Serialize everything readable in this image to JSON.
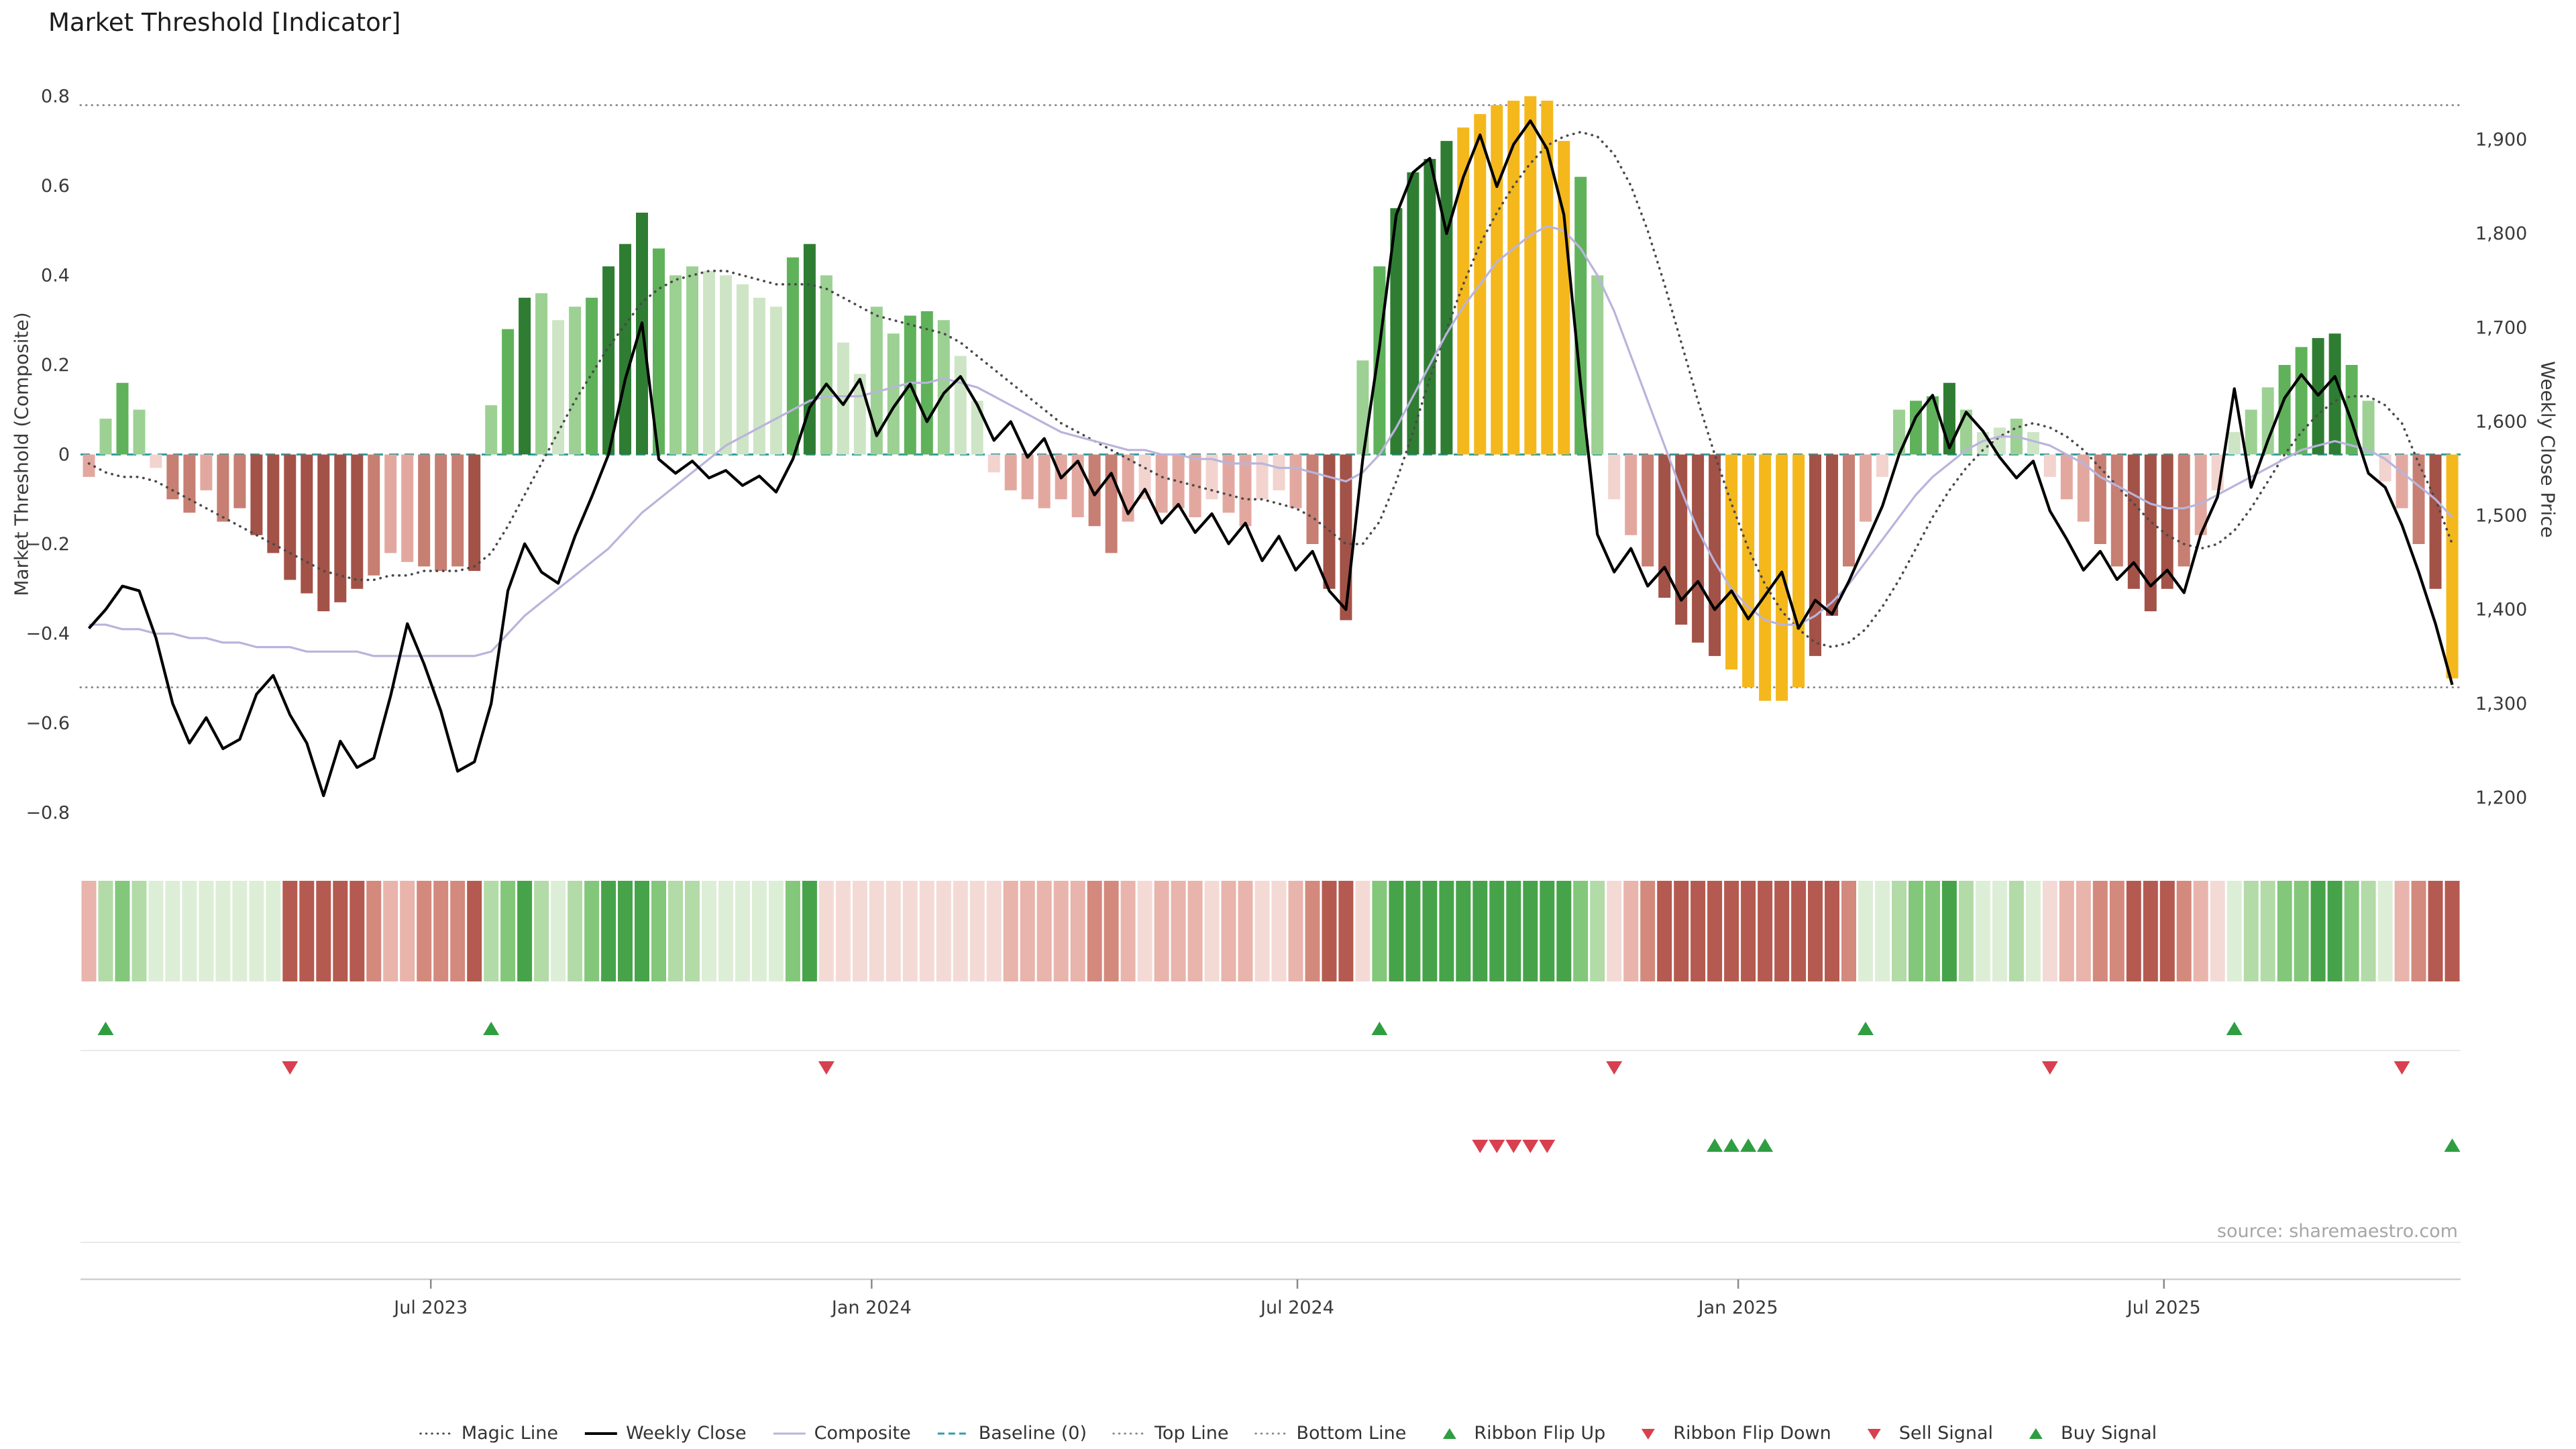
{
  "colors": {
    "bar": {
      "g1": "#cde5c5",
      "g2": "#9cd193",
      "g3": "#5fb25a",
      "g4": "#2f7d33",
      "r1": "#f2d3ce",
      "r2": "#e2a89f",
      "r3": "#c67f72",
      "r4": "#a35247",
      "gold": "#f4b81d"
    },
    "ribbon_green": [
      "#ddeed6",
      "#b2dba8",
      "#83c77a",
      "#47a34a"
    ],
    "ribbon_red": [
      "#f4dad5",
      "#e8b4ab",
      "#d4897d",
      "#b55a50"
    ],
    "magic": "#4a4a4a",
    "composite": "#b9b4dc",
    "price": "#000000",
    "baseline": "#2f9ea6",
    "guide": "#8a8a8a",
    "flip_up": "#2f9e41",
    "flip_down": "#d8404f",
    "sell": "#d8404f",
    "buy": "#2f9e41"
  },
  "chart_data": {
    "type": "combo",
    "title": "Market Threshold [Indicator]",
    "source": "source: sharemaestro.com",
    "ylabel_left": "Market Threshold (Composite)",
    "ylabel_right": "Weekly Close Price",
    "ylim_left": [
      -0.85,
      0.85
    ],
    "ylim_right": [
      1160,
      1970
    ],
    "yticks_left": [
      -0.8,
      -0.6,
      -0.4,
      -0.2,
      0,
      0.2,
      0.4,
      0.6,
      0.8
    ],
    "yticks_right": [
      1200,
      1300,
      1400,
      1500,
      1600,
      1700,
      1800,
      1900
    ],
    "xticks": [
      {
        "index": 20.4,
        "label": "Jul 2023"
      },
      {
        "index": 46.7,
        "label": "Jan 2024"
      },
      {
        "index": 72.1,
        "label": "Jul 2024"
      },
      {
        "index": 98.4,
        "label": "Jan 2025"
      },
      {
        "index": 123.8,
        "label": "Jul 2025"
      }
    ],
    "top_line": 0.78,
    "bottom_line": -0.52,
    "baseline": 0,
    "threshold_bars": {
      "values": [
        -0.05,
        0.08,
        0.16,
        0.1,
        -0.03,
        -0.1,
        -0.13,
        -0.08,
        -0.15,
        -0.12,
        -0.18,
        -0.22,
        -0.28,
        -0.31,
        -0.35,
        -0.33,
        -0.3,
        -0.27,
        -0.22,
        -0.24,
        -0.25,
        -0.26,
        -0.25,
        -0.26,
        0.11,
        0.28,
        0.35,
        0.36,
        0.3,
        0.33,
        0.35,
        0.42,
        0.47,
        0.54,
        0.46,
        0.4,
        0.42,
        0.41,
        0.4,
        0.38,
        0.35,
        0.33,
        0.44,
        0.47,
        0.4,
        0.25,
        0.18,
        0.33,
        0.27,
        0.31,
        0.32,
        0.3,
        0.22,
        0.12,
        -0.04,
        -0.08,
        -0.1,
        -0.12,
        -0.1,
        -0.14,
        -0.16,
        -0.22,
        -0.15,
        -0.1,
        -0.13,
        -0.12,
        -0.14,
        -0.1,
        -0.13,
        -0.16,
        -0.1,
        -0.08,
        -0.12,
        -0.2,
        -0.3,
        -0.37,
        0.21,
        0.42,
        0.55,
        0.63,
        0.66,
        0.7,
        0.73,
        0.76,
        0.78,
        0.79,
        0.8,
        0.79,
        0.7,
        0.62,
        0.4,
        -0.1,
        -0.18,
        -0.25,
        -0.32,
        -0.38,
        -0.42,
        -0.45,
        -0.48,
        -0.52,
        -0.55,
        -0.55,
        -0.52,
        -0.45,
        -0.36,
        -0.25,
        -0.15,
        -0.05,
        0.1,
        0.12,
        0.13,
        0.16,
        0.1,
        0.05,
        0.06,
        0.08,
        0.05,
        -0.05,
        -0.1,
        -0.15,
        -0.2,
        -0.25,
        -0.3,
        -0.35,
        -0.3,
        -0.25,
        -0.18,
        -0.08,
        0.05,
        0.1,
        0.15,
        0.2,
        0.24,
        0.26,
        0.27,
        0.2,
        0.12,
        -0.06,
        -0.12,
        -0.2,
        -0.3,
        -0.5
      ],
      "shades": [
        "r2",
        "g2",
        "g3",
        "g2",
        "r1",
        "r3",
        "r3",
        "r2",
        "r3",
        "r3",
        "r4",
        "r4",
        "r4",
        "r4",
        "r4",
        "r4",
        "r4",
        "r3",
        "r2",
        "r2",
        "r3",
        "r3",
        "r3",
        "r4",
        "g2",
        "g3",
        "g4",
        "g2",
        "g1",
        "g2",
        "g3",
        "g4",
        "g4",
        "g4",
        "g3",
        "g2",
        "g2",
        "g1",
        "g1",
        "g1",
        "g1",
        "g1",
        "g3",
        "g4",
        "g2",
        "g1",
        "g1",
        "g2",
        "g2",
        "g3",
        "g3",
        "g2",
        "g1",
        "g1",
        "r1",
        "r2",
        "r2",
        "r2",
        "r2",
        "r2",
        "r3",
        "r3",
        "r2",
        "r1",
        "r2",
        "r2",
        "r2",
        "r1",
        "r2",
        "r2",
        "r1",
        "r1",
        "r2",
        "r3",
        "r4",
        "r4",
        "g2",
        "g3",
        "g4",
        "g4",
        "g4",
        "g4",
        "gold",
        "gold",
        "gold",
        "gold",
        "gold",
        "gold",
        "gold",
        "g3",
        "g2",
        "r1",
        "r2",
        "r3",
        "r4",
        "r4",
        "r4",
        "r4",
        "gold",
        "gold",
        "gold",
        "gold",
        "gold",
        "r4",
        "r4",
        "r3",
        "r2",
        "r1",
        "g2",
        "g3",
        "g3",
        "g4",
        "g2",
        "g1",
        "g1",
        "g2",
        "g1",
        "r1",
        "r2",
        "r2",
        "r3",
        "r3",
        "r4",
        "r4",
        "r4",
        "r3",
        "r2",
        "r1",
        "g1",
        "g2",
        "g2",
        "g3",
        "g3",
        "g4",
        "g4",
        "g3",
        "g2",
        "r1",
        "r2",
        "r3",
        "r4",
        "gold"
      ]
    },
    "weekly_close": [
      1380,
      1400,
      1425,
      1420,
      1370,
      1300,
      1258,
      1285,
      1252,
      1262,
      1310,
      1330,
      1288,
      1258,
      1202,
      1260,
      1232,
      1242,
      1308,
      1385,
      1342,
      1292,
      1228,
      1238,
      1300,
      1420,
      1470,
      1440,
      1428,
      1478,
      1520,
      1565,
      1645,
      1705,
      1560,
      1545,
      1558,
      1540,
      1548,
      1532,
      1542,
      1525,
      1560,
      1615,
      1640,
      1618,
      1645,
      1585,
      1615,
      1640,
      1600,
      1630,
      1648,
      1618,
      1580,
      1600,
      1562,
      1582,
      1540,
      1558,
      1522,
      1545,
      1502,
      1528,
      1492,
      1512,
      1482,
      1502,
      1470,
      1492,
      1452,
      1478,
      1442,
      1462,
      1420,
      1400,
      1560,
      1680,
      1820,
      1865,
      1880,
      1800,
      1860,
      1905,
      1850,
      1895,
      1920,
      1890,
      1820,
      1640,
      1480,
      1440,
      1465,
      1425,
      1445,
      1410,
      1430,
      1400,
      1420,
      1390,
      1415,
      1440,
      1380,
      1410,
      1395,
      1430,
      1470,
      1510,
      1565,
      1605,
      1628,
      1572,
      1610,
      1590,
      1562,
      1540,
      1558,
      1505,
      1475,
      1442,
      1462,
      1432,
      1450,
      1425,
      1442,
      1418,
      1480,
      1520,
      1635,
      1530,
      1580,
      1625,
      1650,
      1628,
      1648,
      1600,
      1545,
      1530,
      1490,
      1440,
      1385,
      1320
    ],
    "composite": [
      -0.38,
      -0.38,
      -0.39,
      -0.39,
      -0.4,
      -0.4,
      -0.41,
      -0.41,
      -0.42,
      -0.42,
      -0.43,
      -0.43,
      -0.43,
      -0.44,
      -0.44,
      -0.44,
      -0.44,
      -0.45,
      -0.45,
      -0.45,
      -0.45,
      -0.45,
      -0.45,
      -0.45,
      -0.44,
      -0.4,
      -0.36,
      -0.33,
      -0.3,
      -0.27,
      -0.24,
      -0.21,
      -0.17,
      -0.13,
      -0.1,
      -0.07,
      -0.04,
      -0.01,
      0.02,
      0.04,
      0.06,
      0.08,
      0.1,
      0.12,
      0.13,
      0.13,
      0.13,
      0.14,
      0.15,
      0.16,
      0.16,
      0.17,
      0.16,
      0.15,
      0.13,
      0.11,
      0.09,
      0.07,
      0.05,
      0.04,
      0.03,
      0.02,
      0.01,
      0.01,
      0.0,
      0.0,
      -0.01,
      -0.01,
      -0.02,
      -0.02,
      -0.02,
      -0.03,
      -0.03,
      -0.04,
      -0.05,
      -0.06,
      -0.04,
      0.0,
      0.06,
      0.13,
      0.2,
      0.27,
      0.33,
      0.38,
      0.43,
      0.46,
      0.49,
      0.51,
      0.5,
      0.46,
      0.4,
      0.32,
      0.22,
      0.12,
      0.02,
      -0.08,
      -0.17,
      -0.24,
      -0.3,
      -0.34,
      -0.37,
      -0.38,
      -0.38,
      -0.36,
      -0.33,
      -0.29,
      -0.24,
      -0.19,
      -0.14,
      -0.09,
      -0.05,
      -0.02,
      0.01,
      0.03,
      0.04,
      0.04,
      0.03,
      0.02,
      0.0,
      -0.02,
      -0.05,
      -0.07,
      -0.09,
      -0.11,
      -0.12,
      -0.12,
      -0.11,
      -0.09,
      -0.07,
      -0.05,
      -0.03,
      -0.01,
      0.01,
      0.02,
      0.03,
      0.02,
      0.01,
      -0.01,
      -0.04,
      -0.07,
      -0.1,
      -0.14
    ],
    "magic_line": [
      -0.02,
      -0.04,
      -0.05,
      -0.05,
      -0.06,
      -0.08,
      -0.1,
      -0.12,
      -0.14,
      -0.16,
      -0.18,
      -0.2,
      -0.22,
      -0.24,
      -0.26,
      -0.27,
      -0.28,
      -0.28,
      -0.27,
      -0.27,
      -0.26,
      -0.26,
      -0.26,
      -0.25,
      -0.22,
      -0.16,
      -0.09,
      -0.02,
      0.05,
      0.12,
      0.18,
      0.24,
      0.29,
      0.34,
      0.37,
      0.39,
      0.4,
      0.41,
      0.41,
      0.4,
      0.39,
      0.38,
      0.38,
      0.38,
      0.37,
      0.35,
      0.33,
      0.31,
      0.3,
      0.29,
      0.28,
      0.27,
      0.25,
      0.22,
      0.19,
      0.16,
      0.13,
      0.1,
      0.07,
      0.05,
      0.03,
      0.01,
      -0.01,
      -0.03,
      -0.05,
      -0.06,
      -0.07,
      -0.08,
      -0.09,
      -0.1,
      -0.1,
      -0.11,
      -0.12,
      -0.14,
      -0.17,
      -0.2,
      -0.2,
      -0.15,
      -0.06,
      0.05,
      0.17,
      0.28,
      0.38,
      0.47,
      0.54,
      0.6,
      0.65,
      0.69,
      0.71,
      0.72,
      0.71,
      0.67,
      0.6,
      0.5,
      0.38,
      0.25,
      0.12,
      0.0,
      -0.11,
      -0.21,
      -0.29,
      -0.35,
      -0.39,
      -0.42,
      -0.43,
      -0.42,
      -0.39,
      -0.34,
      -0.28,
      -0.21,
      -0.14,
      -0.08,
      -0.03,
      0.01,
      0.04,
      0.06,
      0.07,
      0.06,
      0.04,
      0.01,
      -0.03,
      -0.07,
      -0.11,
      -0.15,
      -0.18,
      -0.2,
      -0.21,
      -0.2,
      -0.17,
      -0.12,
      -0.06,
      0.0,
      0.05,
      0.09,
      0.12,
      0.13,
      0.13,
      0.11,
      0.07,
      -0.02,
      -0.1,
      -0.2
    ],
    "ribbon": {
      "segments": [
        {
          "from": 0,
          "to": 0,
          "sign": "r"
        },
        {
          "from": 1,
          "to": 11,
          "sign": "g"
        },
        {
          "from": 12,
          "to": 23,
          "sign": "r"
        },
        {
          "from": 24,
          "to": 43,
          "sign": "g"
        },
        {
          "from": 44,
          "to": 76,
          "sign": "r"
        },
        {
          "from": 77,
          "to": 90,
          "sign": "g"
        },
        {
          "from": 91,
          "to": 105,
          "sign": "r"
        },
        {
          "from": 106,
          "to": 116,
          "sign": "g"
        },
        {
          "from": 117,
          "to": 127,
          "sign": "r"
        },
        {
          "from": 128,
          "to": 137,
          "sign": "g"
        },
        {
          "from": 138,
          "to": 141,
          "sign": "r"
        }
      ]
    },
    "signals": {
      "ribbon_flip_up": [
        1,
        24,
        77,
        106,
        128
      ],
      "ribbon_flip_down": [
        12,
        44,
        91,
        117,
        138
      ],
      "sell": [
        83,
        84,
        85,
        86,
        87
      ],
      "buy": [
        97,
        98,
        99,
        100,
        141
      ]
    },
    "legend": [
      {
        "label": "Magic Line",
        "kind": "line",
        "style": "dotted",
        "color": "#4a4a4a"
      },
      {
        "label": "Weekly Close",
        "kind": "line",
        "style": "solid",
        "color": "#000000",
        "width": 4
      },
      {
        "label": "Composite",
        "kind": "line",
        "style": "solid",
        "color": "#b9b4dc"
      },
      {
        "label": "Baseline (0)",
        "kind": "line",
        "style": "dashed",
        "color": "#2f9ea6"
      },
      {
        "label": "Top Line",
        "kind": "line",
        "style": "dotted",
        "color": "#8a8a8a"
      },
      {
        "label": "Bottom Line",
        "kind": "line",
        "style": "dotted",
        "color": "#8a8a8a"
      },
      {
        "label": "Ribbon Flip Up",
        "kind": "marker",
        "shape": "up",
        "color": "#2f9e41"
      },
      {
        "label": "Ribbon Flip Down",
        "kind": "marker",
        "shape": "down",
        "color": "#d8404f"
      },
      {
        "label": "Sell Signal",
        "kind": "marker",
        "shape": "down",
        "color": "#d8404f"
      },
      {
        "label": "Buy Signal",
        "kind": "marker",
        "shape": "up",
        "color": "#2f9e41"
      }
    ]
  }
}
